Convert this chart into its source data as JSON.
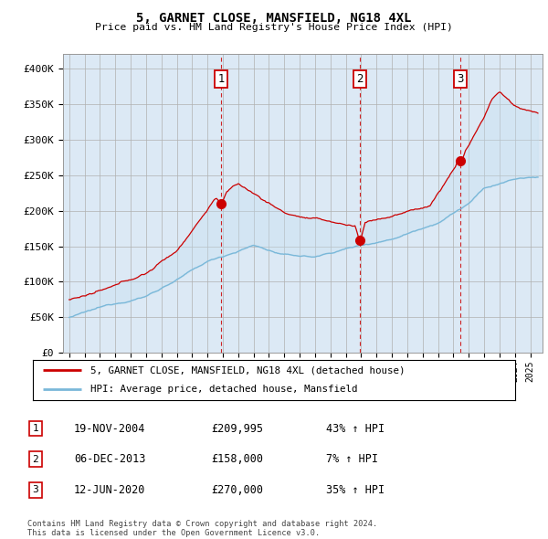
{
  "title": "5, GARNET CLOSE, MANSFIELD, NG18 4XL",
  "subtitle": "Price paid vs. HM Land Registry's House Price Index (HPI)",
  "background_color": "#ffffff",
  "plot_bg_color": "#dce9f5",
  "ylim": [
    0,
    420000
  ],
  "yticks": [
    0,
    50000,
    100000,
    150000,
    200000,
    250000,
    300000,
    350000,
    400000
  ],
  "ytick_labels": [
    "£0",
    "£50K",
    "£100K",
    "£150K",
    "£200K",
    "£250K",
    "£300K",
    "£350K",
    "£400K"
  ],
  "sale_year_floats": [
    2004.88,
    2013.92,
    2020.45
  ],
  "sale_prices": [
    209995,
    158000,
    270000
  ],
  "sale_labels": [
    "1",
    "2",
    "3"
  ],
  "sale_info": [
    {
      "num": "1",
      "date": "19-NOV-2004",
      "price": "£209,995",
      "pct": "43% ↑ HPI"
    },
    {
      "num": "2",
      "date": "06-DEC-2013",
      "price": "£158,000",
      "pct": "7% ↑ HPI"
    },
    {
      "num": "3",
      "date": "12-JUN-2020",
      "price": "£270,000",
      "pct": "35% ↑ HPI"
    }
  ],
  "legend_line1": "5, GARNET CLOSE, MANSFIELD, NG18 4XL (detached house)",
  "legend_line2": "HPI: Average price, detached house, Mansfield",
  "footer": "Contains HM Land Registry data © Crown copyright and database right 2024.\nThis data is licensed under the Open Government Licence v3.0.",
  "hpi_color": "#7ab8d9",
  "fill_color": "#c5dff0",
  "price_color": "#cc0000",
  "vline_color": "#cc0000",
  "grid_color": "#b0b0b0",
  "label_box_color": "#cc0000"
}
